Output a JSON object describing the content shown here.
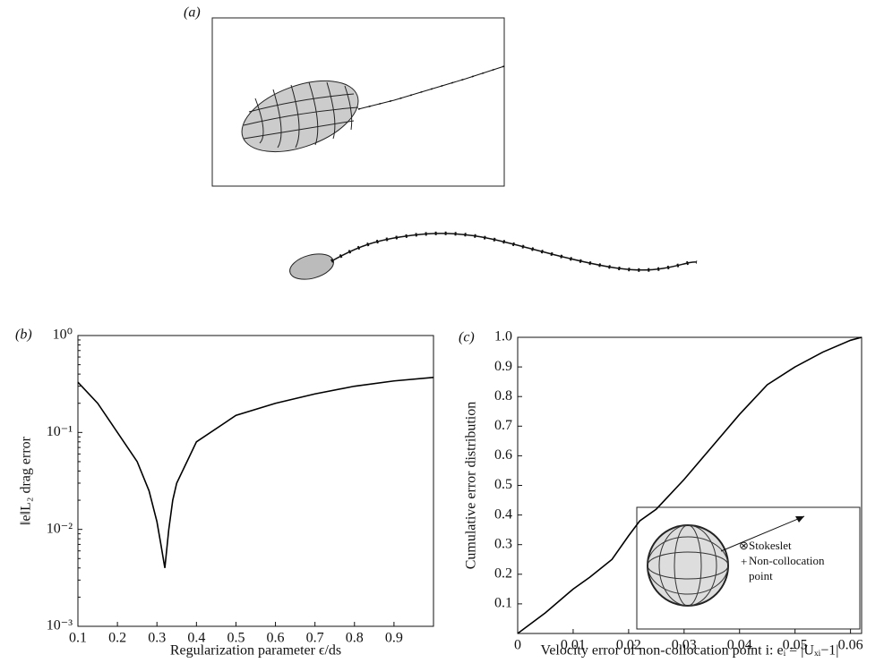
{
  "figure": {
    "panel_label": "(a)"
  },
  "chart_data": [
    {
      "type": "line",
      "panel_label": "(b)",
      "x_label": "Regularization parameter ϵ/ds",
      "y_label": "‖e‖L₂ drag error",
      "log_y": true,
      "xlim": [
        0.1,
        1.0
      ],
      "ylim": [
        0.001,
        1
      ],
      "xticks": [
        0.1,
        0.2,
        0.3,
        0.4,
        0.5,
        0.6,
        0.7,
        0.8,
        0.9
      ],
      "yticks": [
        {
          "value": 0.001,
          "label": "10⁻³"
        },
        {
          "value": 0.01,
          "label": "10⁻²"
        },
        {
          "value": 0.1,
          "label": "10⁻¹"
        },
        {
          "value": 1,
          "label": "10⁰"
        }
      ],
      "x": [
        0.1,
        0.15,
        0.2,
        0.25,
        0.28,
        0.3,
        0.31,
        0.32,
        0.33,
        0.34,
        0.35,
        0.4,
        0.5,
        0.6,
        0.7,
        0.8,
        0.9,
        1.0
      ],
      "values": [
        0.33,
        0.2,
        0.1,
        0.05,
        0.025,
        0.012,
        0.007,
        0.004,
        0.01,
        0.02,
        0.03,
        0.08,
        0.15,
        0.2,
        0.25,
        0.3,
        0.34,
        0.37
      ],
      "color": "#000000"
    },
    {
      "type": "line",
      "panel_label": "(c)",
      "x_label": "Velocity error of  non-collocation point i: eᵢ = |Uₓᵢ−1|",
      "y_label": "Cumulative error distribution",
      "log_y": false,
      "xlim": [
        0,
        0.062
      ],
      "ylim": [
        0,
        1
      ],
      "xticks": [
        0,
        0.01,
        0.02,
        0.03,
        0.04,
        0.05,
        0.06
      ],
      "yticks": [
        0.1,
        0.2,
        0.3,
        0.4,
        0.5,
        0.6,
        0.7,
        0.8,
        0.9,
        {
          "value": 1,
          "label": "1.0"
        }
      ],
      "x": [
        0,
        0.005,
        0.01,
        0.013,
        0.017,
        0.02,
        0.022,
        0.025,
        0.03,
        0.035,
        0.04,
        0.045,
        0.05,
        0.055,
        0.06,
        0.062
      ],
      "values": [
        0,
        0.07,
        0.15,
        0.19,
        0.25,
        0.33,
        0.38,
        0.42,
        0.52,
        0.63,
        0.74,
        0.84,
        0.9,
        0.95,
        0.99,
        1.0
      ],
      "color": "#000000",
      "annotations": [
        "Stokeslet",
        "Non-collocation",
        "point"
      ]
    }
  ]
}
